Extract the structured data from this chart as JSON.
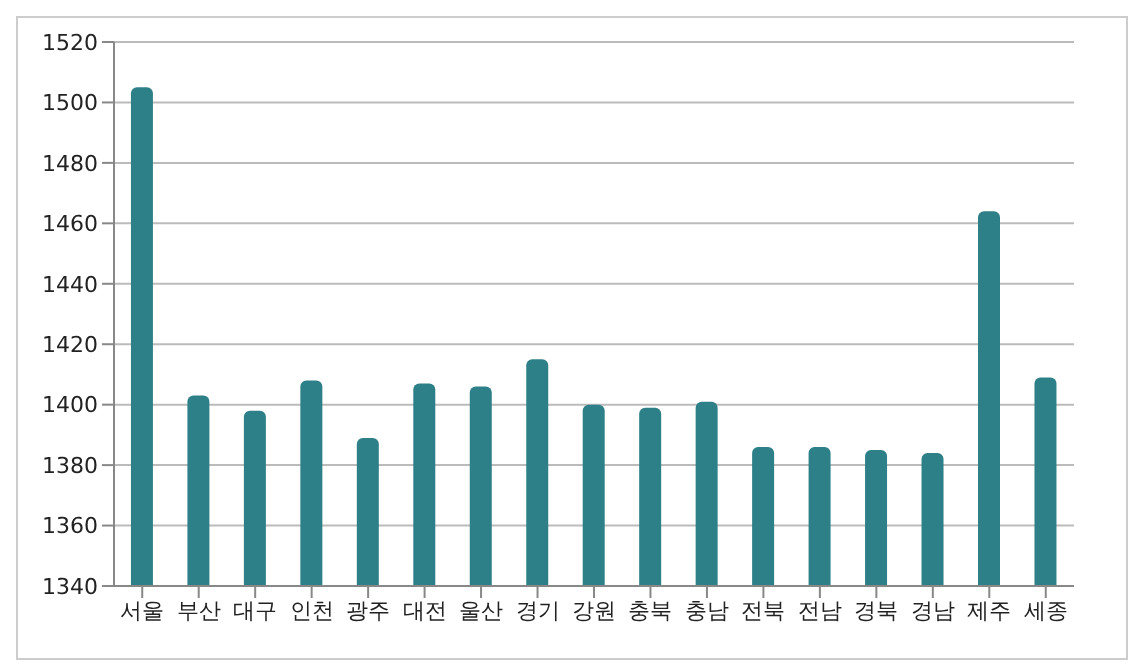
{
  "chart_data": {
    "type": "bar",
    "categories": [
      "서울",
      "부산",
      "대구",
      "인천",
      "광주",
      "대전",
      "울산",
      "경기",
      "강원",
      "충북",
      "충남",
      "전북",
      "전남",
      "경북",
      "경남",
      "제주",
      "세종"
    ],
    "values": [
      1505,
      1403,
      1398,
      1408,
      1389,
      1407,
      1406,
      1415,
      1400,
      1399,
      1401,
      1386,
      1386,
      1385,
      1384,
      1464,
      1409
    ],
    "color": "#2e8088",
    "ylim": [
      1340,
      1520
    ],
    "yticks": [
      1340,
      1360,
      1380,
      1400,
      1420,
      1440,
      1460,
      1480,
      1500,
      1520
    ],
    "grid": "y"
  }
}
